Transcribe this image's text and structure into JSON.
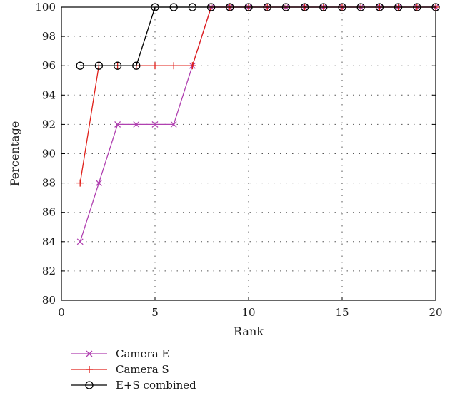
{
  "chart_data": {
    "type": "line",
    "title": "",
    "xlabel": "Rank",
    "ylabel": "Percentage",
    "xlim": [
      0,
      20
    ],
    "ylim": [
      80,
      100
    ],
    "xticks": [
      0,
      5,
      10,
      15,
      20
    ],
    "yticks": [
      80,
      82,
      84,
      86,
      88,
      90,
      92,
      94,
      96,
      98,
      100
    ],
    "grid": "dotted",
    "legend_position": "below plot",
    "x": [
      1,
      2,
      3,
      4,
      5,
      6,
      7,
      8,
      9,
      10,
      11,
      12,
      13,
      14,
      15,
      16,
      17,
      18,
      19,
      20
    ],
    "series": [
      {
        "name": "Camera E",
        "color": "#b040b0",
        "marker": "x",
        "values": [
          84,
          88,
          92,
          92,
          92,
          92,
          96,
          100,
          100,
          100,
          100,
          100,
          100,
          100,
          100,
          100,
          100,
          100,
          100,
          100
        ]
      },
      {
        "name": "Camera S",
        "color": "#e0201a",
        "marker": "+",
        "values": [
          88,
          96,
          96,
          96,
          96,
          96,
          96,
          100,
          100,
          100,
          100,
          100,
          100,
          100,
          100,
          100,
          100,
          100,
          100,
          100
        ]
      },
      {
        "name": "E+S combined",
        "color": "#000000",
        "marker": "o",
        "values": [
          96,
          96,
          96,
          96,
          100,
          100,
          100,
          100,
          100,
          100,
          100,
          100,
          100,
          100,
          100,
          100,
          100,
          100,
          100,
          100
        ]
      }
    ]
  }
}
